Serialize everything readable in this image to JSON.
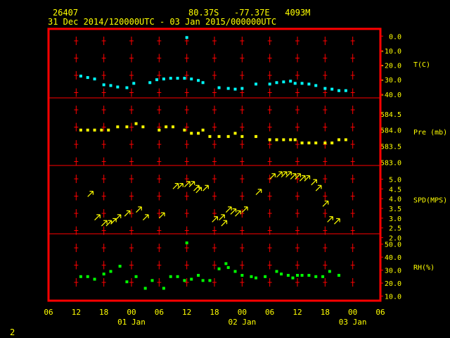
{
  "header": {
    "station_id": "26407",
    "location": "80.37S   -77.37E   4093M",
    "period": "31 Dec 2014/120000UTC - 03 Jan 2015/000000UTC"
  },
  "footer": {
    "page_number": "2"
  },
  "colors": {
    "frame": "#ff0000",
    "text": "#ffff00",
    "temp": "#00ffff",
    "pressure": "#ffff00",
    "wind": "#ffff00",
    "rh": "#00ff00",
    "ticks": "#ff0000"
  },
  "chart_data": {
    "type": "scatter",
    "x_unit": "hours from 31 Dec 2014 06 UTC",
    "x_ticks": [
      {
        "hour": 0,
        "label": "06"
      },
      {
        "hour": 6,
        "label": "12"
      },
      {
        "hour": 12,
        "label": "18"
      },
      {
        "hour": 18,
        "label": "00"
      },
      {
        "hour": 24,
        "label": "06"
      },
      {
        "hour": 30,
        "label": "12"
      },
      {
        "hour": 36,
        "label": "18"
      },
      {
        "hour": 42,
        "label": "00"
      },
      {
        "hour": 48,
        "label": "06"
      },
      {
        "hour": 54,
        "label": "12"
      },
      {
        "hour": 60,
        "label": "18"
      },
      {
        "hour": 66,
        "label": "00"
      },
      {
        "hour": 72,
        "label": "06"
      }
    ],
    "day_labels": [
      {
        "hour": 18,
        "label": "01 Jan"
      },
      {
        "hour": 42,
        "label": "02 Jan"
      },
      {
        "hour": 66,
        "label": "03 Jan"
      }
    ],
    "panels": [
      {
        "id": "temp",
        "ylabel": "T(C)",
        "ymin": -42.5,
        "ymax": 4.0,
        "ticks": [
          {
            "v": 0,
            "label": "0.0"
          },
          {
            "v": -10,
            "label": "-10.0"
          },
          {
            "v": -20,
            "label": "-20.0"
          },
          {
            "v": -30,
            "label": "-30.0"
          },
          {
            "v": -40,
            "label": "-40.0"
          }
        ],
        "series": [
          {
            "x": [
              7,
              8.5,
              10,
              12,
              13.5,
              15,
              17,
              18.5,
              22,
              23.5,
              25,
              26.5,
              28,
              29.5,
              30,
              31,
              32.5,
              33.5,
              37,
              39,
              40.5,
              42,
              45,
              48,
              49.5,
              51,
              52.5,
              53.5,
              55,
              56.5,
              58,
              60,
              61.5,
              63,
              64.5
            ],
            "y": [
              -27.5,
              -28.5,
              -29.5,
              -33.5,
              -34,
              -35,
              -35.5,
              -32.5,
              -32,
              -30,
              -29.5,
              -29,
              -29,
              -29,
              -1,
              -29.5,
              -30.5,
              -32,
              -35.5,
              -36,
              -36.5,
              -36,
              -33,
              -33,
              -32,
              -31.5,
              -31,
              -32.5,
              -32.5,
              -33,
              -34,
              -36,
              -36.5,
              -37.5,
              -37.5
            ]
          }
        ]
      },
      {
        "id": "pres",
        "ylabel": "Pre (mb)",
        "ymin": 582.9,
        "ymax": 585.0,
        "ticks": [
          {
            "v": 584.5,
            "label": "584.5"
          },
          {
            "v": 584.0,
            "label": "584.0"
          },
          {
            "v": 583.5,
            "label": "583.5"
          },
          {
            "v": 583.0,
            "label": "583.0"
          }
        ],
        "series": [
          {
            "x": [
              7,
              8.5,
              10,
              11.5,
              13,
              15,
              17,
              19,
              20.5,
              24,
              25.5,
              27,
              29.5,
              31,
              32.5,
              33.5,
              35,
              37,
              39,
              40.5,
              42,
              45,
              48,
              49.5,
              51,
              52.5,
              53.5,
              55,
              56.5,
              58,
              60,
              61.5,
              63,
              64.5
            ],
            "y": [
              584.0,
              584.0,
              584.0,
              584.0,
              584.0,
              584.1,
              584.1,
              584.2,
              584.1,
              584.0,
              584.1,
              584.1,
              584.0,
              583.9,
              583.9,
              584.0,
              583.8,
              583.8,
              583.8,
              583.9,
              583.8,
              583.8,
              583.7,
              583.7,
              583.7,
              583.7,
              583.7,
              583.6,
              583.6,
              583.6,
              583.6,
              583.6,
              583.7,
              583.7
            ]
          }
        ]
      },
      {
        "id": "wind",
        "ylabel": "SPD(MPS)",
        "ymin": 2.2,
        "ymax": 5.7,
        "ticks": [
          {
            "v": 5.0,
            "label": "5.0"
          },
          {
            "v": 4.5,
            "label": "4.5"
          },
          {
            "v": 4.0,
            "label": "4.0"
          },
          {
            "v": 3.5,
            "label": "3.5"
          },
          {
            "v": 3.0,
            "label": "3.0"
          },
          {
            "v": 2.5,
            "label": "2.5"
          },
          {
            "v": 2.0,
            "label": "2.0"
          }
        ],
        "series": [
          {
            "x": [
              8.5,
              10,
              11.5,
              12.5,
              13.5,
              14.5,
              16.5,
              19,
              20.5,
              24,
              27,
              28,
              29.5,
              30.5,
              31.5,
              32,
              33.5,
              35.5,
              37,
              37.5,
              38.5,
              39.5,
              40.5,
              42,
              45,
              48,
              49.5,
              50.5,
              51.5,
              52.5,
              53.5,
              54.5,
              55.5,
              57,
              58,
              59.5,
              60.5,
              62
            ],
            "y": [
              4.1,
              2.9,
              2.6,
              2.6,
              2.7,
              2.9,
              3.1,
              3.3,
              2.9,
              3.0,
              4.5,
              4.5,
              4.6,
              4.6,
              4.4,
              4.3,
              4.4,
              2.8,
              2.9,
              2.6,
              3.3,
              3.2,
              3.1,
              3.3,
              4.2,
              5.0,
              5.1,
              5.1,
              5.1,
              5.0,
              5.0,
              4.9,
              4.9,
              4.7,
              4.4,
              3.6,
              2.8,
              2.7
            ]
          }
        ]
      },
      {
        "id": "rh",
        "ylabel": "RH(%)",
        "ymin": 7.0,
        "ymax": 58.0,
        "ticks": [
          {
            "v": 50,
            "label": "50.0"
          },
          {
            "v": 40,
            "label": "40.0"
          },
          {
            "v": 30,
            "label": "30.0"
          },
          {
            "v": 20,
            "label": "20.0"
          },
          {
            "v": 10,
            "label": "10.0"
          }
        ],
        "series": [
          {
            "x": [
              7,
              8.5,
              10,
              12,
              13.5,
              15.5,
              17,
              19,
              21,
              22.5,
              25,
              26.5,
              28,
              29.5,
              30,
              31,
              32.5,
              33.5,
              35,
              37,
              38.5,
              39,
              40.5,
              42,
              44,
              45,
              47,
              49.5,
              50.5,
              52,
              53,
              54,
              55,
              56.5,
              58,
              59.5,
              61,
              63
            ],
            "y": [
              25,
              25,
              23,
              27,
              29,
              33,
              21,
              25,
              16,
              22,
              16,
              25,
              25,
              22,
              51,
              23,
              26,
              22,
              22,
              31,
              35,
              32,
              29,
              26,
              25,
              24,
              25,
              29,
              27,
              26,
              24,
              26,
              26,
              26,
              25,
              25,
              29,
              26
            ]
          }
        ]
      }
    ]
  }
}
